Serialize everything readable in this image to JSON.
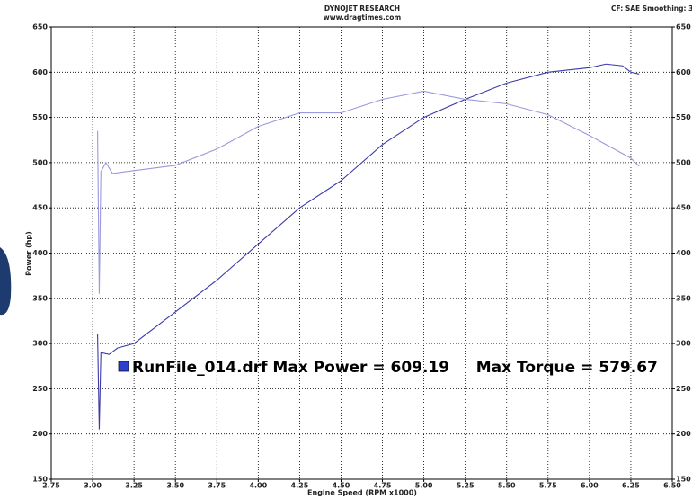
{
  "chart_data": {
    "type": "line",
    "title": "DYNOJET RESEARCH",
    "subtitle": "www.dragtimes.com",
    "header_right": "CF: SAE  Smoothing: 3",
    "xlabel": "Engine Speed (RPM x1000)",
    "ylabel": "Power (hp)",
    "annotation": "RunFile_014.drf Max Power = 609.19     Max Torque = 579.67",
    "xlim": [
      2.75,
      6.5
    ],
    "xticks": [
      2.75,
      {
        "value": 3,
        "label": "3.00"
      },
      3.25,
      {
        "value": 3.5,
        "label": "3.50"
      },
      3.75,
      {
        "value": 4,
        "label": "4.00"
      },
      4.25,
      {
        "value": 4.5,
        "label": "4.50"
      },
      4.75,
      {
        "value": 5,
        "label": "5.00"
      },
      5.25,
      {
        "value": 5.5,
        "label": "5.50"
      },
      5.75,
      {
        "value": 6,
        "label": "6.00"
      },
      6.25,
      {
        "value": 6.5,
        "label": "6.50"
      }
    ],
    "ylim": [
      150,
      650
    ],
    "yticks": [
      150,
      200,
      250,
      300,
      350,
      400,
      450,
      500,
      550,
      600,
      650
    ],
    "grid": true,
    "series": [
      {
        "color": "#3a3aa8",
        "x": [
          3.03,
          3.04,
          3.05,
          3.1,
          3.15,
          3.25,
          3.5,
          3.75,
          4.0,
          4.25,
          4.5,
          4.75,
          5.0,
          5.25,
          5.5,
          5.75,
          6.0,
          6.1,
          6.2,
          6.25,
          6.3
        ],
        "values": [
          310,
          205,
          290,
          288,
          295,
          300,
          335,
          370,
          410,
          450,
          480,
          520,
          550,
          570,
          588,
          600,
          605,
          609,
          607,
          600,
          598
        ]
      },
      {
        "color": "#9a9adc",
        "x": [
          3.03,
          3.04,
          3.05,
          3.08,
          3.12,
          3.2,
          3.5,
          3.75,
          4.0,
          4.25,
          4.5,
          4.75,
          5.0,
          5.25,
          5.5,
          5.75,
          6.0,
          6.25,
          6.3
        ],
        "values": [
          535,
          355,
          490,
          500,
          488,
          490,
          497,
          515,
          540,
          555,
          555,
          570,
          579,
          570,
          565,
          553,
          530,
          505,
          496
        ]
      }
    ]
  }
}
